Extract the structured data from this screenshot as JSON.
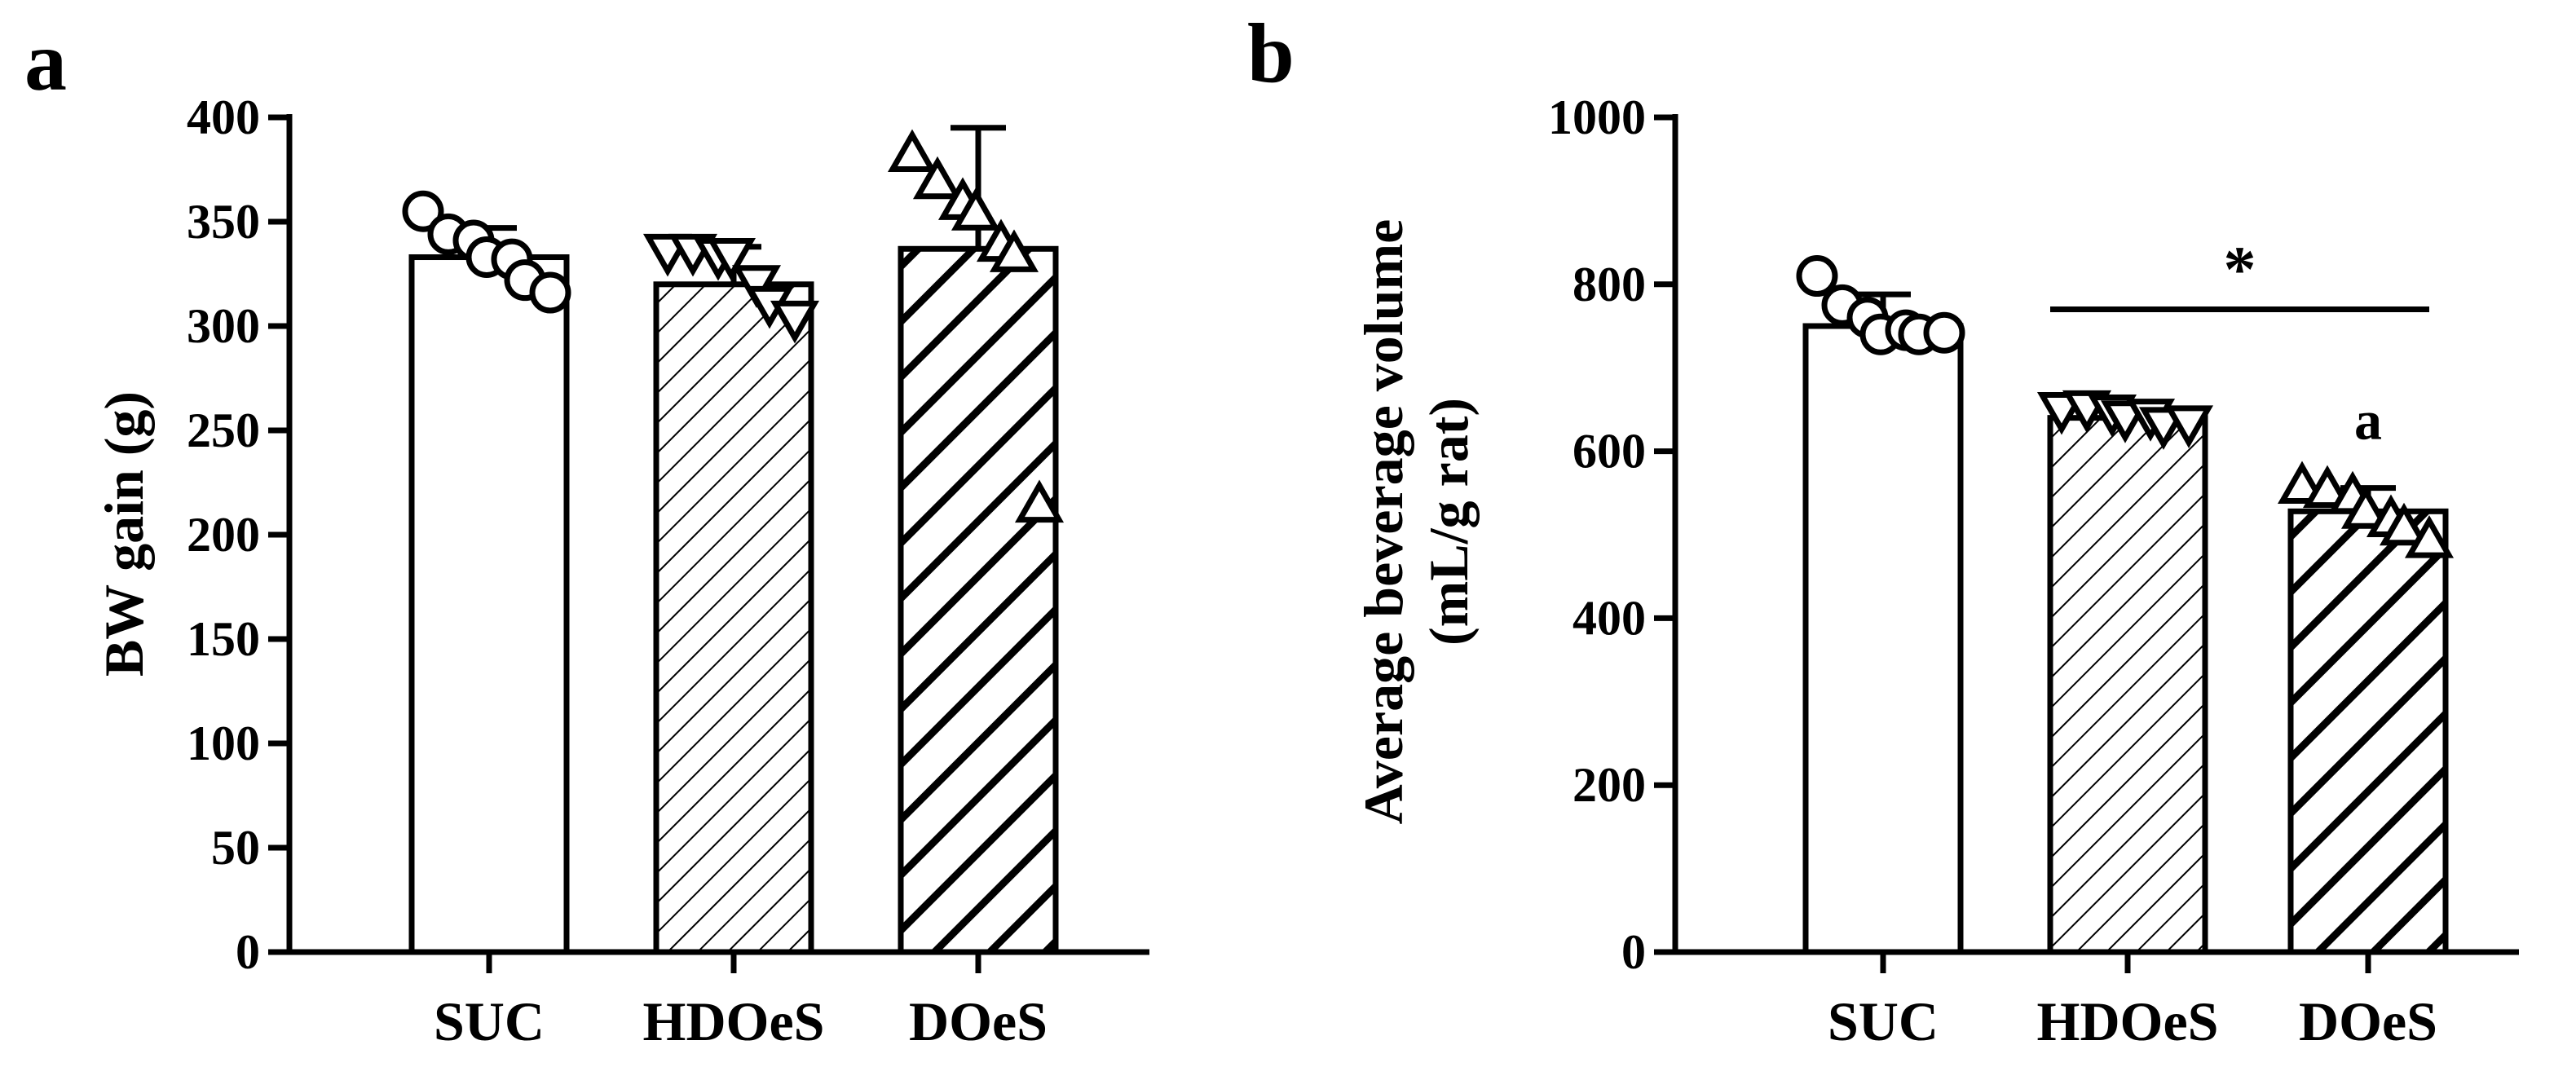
{
  "chart_data": [
    {
      "panel": "a",
      "type": "bar",
      "ylabel": "BW gain (g)",
      "xlabel": "",
      "ylim": [
        0,
        400
      ],
      "yticks": [
        0,
        50,
        100,
        150,
        200,
        250,
        300,
        350,
        400
      ],
      "categories": [
        "SUC",
        "HDOeS",
        "DOeS"
      ],
      "values": [
        333,
        320,
        337
      ],
      "errors": [
        14,
        18,
        58
      ],
      "fills": [
        "blank",
        "thin-hatch",
        "thick-hatch"
      ],
      "markers": [
        "circle",
        "triangle-down",
        "triangle-up"
      ],
      "points": [
        [
          355,
          344,
          341,
          333,
          332,
          322,
          316
        ],
        [
          335,
          335,
          333,
          333,
          320,
          310,
          303
        ],
        [
          383,
          370,
          360,
          355,
          340,
          335,
          215
        ]
      ],
      "annotations": []
    },
    {
      "panel": "b",
      "type": "bar",
      "ylabel": "Average beverage volume (mL/g rat)",
      "ylabel_lines": [
        "Average beverage volume",
        "(mL/g rat)"
      ],
      "xlabel": "",
      "ylim": [
        0,
        1000
      ],
      "yticks": [
        0,
        200,
        400,
        600,
        800,
        1000
      ],
      "categories": [
        "SUC",
        "HDOeS",
        "DOeS"
      ],
      "values": [
        750,
        640,
        528
      ],
      "errors": [
        38,
        10,
        28
      ],
      "fills": [
        "blank",
        "thin-hatch",
        "thick-hatch"
      ],
      "markers": [
        "circle",
        "triangle-down",
        "triangle-up"
      ],
      "points": [
        [
          810,
          775,
          760,
          740,
          745,
          740,
          742
        ],
        [
          648,
          650,
          645,
          638,
          640,
          630,
          632
        ],
        [
          560,
          555,
          548,
          530,
          520,
          510,
          495
        ]
      ],
      "significance": {
        "from": 1,
        "to": 2,
        "label": "*",
        "y": 770
      },
      "annotations": [
        {
          "category": 2,
          "text": "a"
        }
      ]
    }
  ]
}
